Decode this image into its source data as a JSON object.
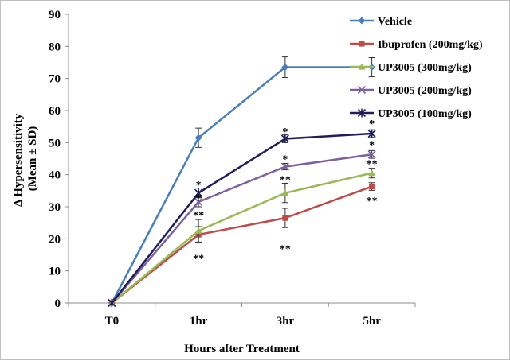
{
  "chart_data": {
    "type": "line",
    "title": "",
    "xlabel": "Hours after Treatment",
    "ylabel_lines": [
      "Δ Hypersensitivity",
      "(Mean ± SD)"
    ],
    "categories": [
      "T0",
      "1hr",
      "3hr",
      "5hr"
    ],
    "ylim": [
      0,
      90
    ],
    "yticks": [
      0,
      10,
      20,
      30,
      40,
      50,
      60,
      70,
      80,
      90
    ],
    "grid": false,
    "legend_position": "top-right",
    "series": [
      {
        "name": "Vehicle",
        "color": "#4a7ebb",
        "marker": "diamond",
        "values": [
          0,
          51.5,
          73.5,
          73.5
        ],
        "errors": [
          0,
          3,
          3.2,
          3
        ]
      },
      {
        "name": "Ibuprofen (200mg/kg)",
        "color": "#be4b48",
        "marker": "square",
        "values": [
          0,
          21.3,
          26.5,
          36.3
        ],
        "errors": [
          0,
          2.5,
          3,
          1.2
        ]
      },
      {
        "name": "UP3005 (300mg/kg)",
        "color": "#98b954",
        "marker": "triangle",
        "values": [
          0,
          22.5,
          34.3,
          40.5
        ],
        "errors": [
          0,
          3.5,
          3,
          1.5
        ]
      },
      {
        "name": "UP3005 (200mg/kg)",
        "color": "#7d60a0",
        "marker": "x",
        "values": [
          0,
          31.5,
          42.5,
          46.3
        ],
        "errors": [
          0,
          1.5,
          1,
          1.2
        ]
      },
      {
        "name": "UP3005 (100mg/kg)",
        "color": "#1f1e5a",
        "marker": "x-cross",
        "values": [
          0,
          34.3,
          51.2,
          52.8
        ],
        "errors": [
          0,
          1.5,
          1.2,
          1.2
        ]
      }
    ],
    "annotations": [
      {
        "text": "*",
        "x": "1hr",
        "y": 37
      },
      {
        "text": "*",
        "x": "1hr",
        "y": 33
      },
      {
        "text": "**",
        "x": "1hr",
        "y": 27.5
      },
      {
        "text": "**",
        "x": "1hr",
        "y": 14
      },
      {
        "text": "*",
        "x": "3hr",
        "y": 53.5
      },
      {
        "text": "*",
        "x": "3hr",
        "y": 45
      },
      {
        "text": "**",
        "x": "3hr",
        "y": 38.5
      },
      {
        "text": "**",
        "x": "3hr",
        "y": 17
      },
      {
        "text": "*",
        "x": "5hr",
        "y": 56
      },
      {
        "text": "*",
        "x": "5hr",
        "y": 49.5
      },
      {
        "text": "**",
        "x": "5hr",
        "y": 43.5
      },
      {
        "text": "**",
        "x": "5hr",
        "y": 32
      }
    ]
  }
}
